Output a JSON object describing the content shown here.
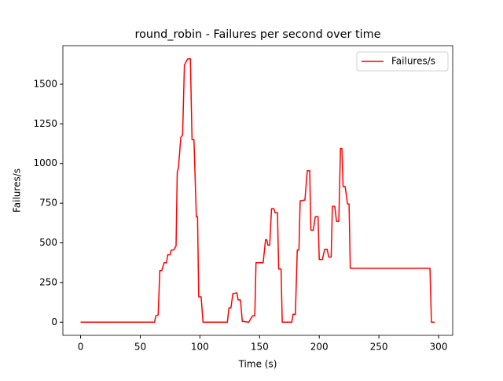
{
  "chart_data": {
    "type": "line",
    "title": "round_robin - Failures per second over time",
    "x_label": "Time (s)",
    "y_label": "Failures/s",
    "x": [
      0,
      62,
      63,
      65,
      66.4,
      68,
      70,
      72,
      73,
      75,
      76,
      78,
      80,
      81,
      82,
      84,
      85.5,
      87,
      89,
      90,
      92,
      93.4,
      95,
      97,
      98,
      99,
      101,
      102.6,
      123,
      124.3,
      126,
      127.6,
      131,
      132,
      134,
      135.5,
      141,
      144,
      146,
      147,
      153,
      155,
      156,
      157,
      158.5,
      160,
      162,
      163,
      165,
      166,
      168,
      169,
      177,
      178,
      180,
      181.6,
      183,
      184,
      188,
      190,
      192,
      193,
      195,
      196.7,
      199,
      200,
      202.6,
      204.6,
      206.6,
      208,
      210,
      211,
      213,
      214.5,
      216.4,
      217.8,
      219,
      220,
      221.7,
      223.7,
      225,
      226,
      292.8,
      294,
      296.7
    ],
    "series": [
      {
        "name": "Failures/s",
        "color": "#ff0000",
        "values": [
          0,
          0,
          40,
          45,
          325,
          325,
          375,
          375,
          425,
          425,
          455,
          455,
          480,
          945,
          975,
          1165,
          1180,
          1620,
          1650,
          1660,
          1660,
          1150,
          1150,
          665,
          665,
          160,
          160,
          0,
          0,
          90,
          90,
          180,
          185,
          140,
          140,
          5,
          0,
          40,
          40,
          375,
          375,
          520,
          520,
          485,
          485,
          715,
          715,
          690,
          690,
          335,
          335,
          0,
          0,
          50,
          50,
          455,
          455,
          765,
          770,
          955,
          955,
          580,
          580,
          665,
          665,
          395,
          395,
          460,
          460,
          410,
          410,
          730,
          730,
          635,
          635,
          1095,
          1095,
          855,
          855,
          745,
          745,
          340,
          340,
          0,
          0
        ]
      }
    ],
    "xlim": [
      -14.85,
      311.85
    ],
    "ylim": [
      -83,
      1743
    ],
    "xticks": [
      0,
      50,
      100,
      150,
      200,
      250,
      300
    ],
    "yticks": [
      0,
      250,
      500,
      750,
      1000,
      1250,
      1500
    ],
    "grid": false,
    "legend": "upper right"
  }
}
